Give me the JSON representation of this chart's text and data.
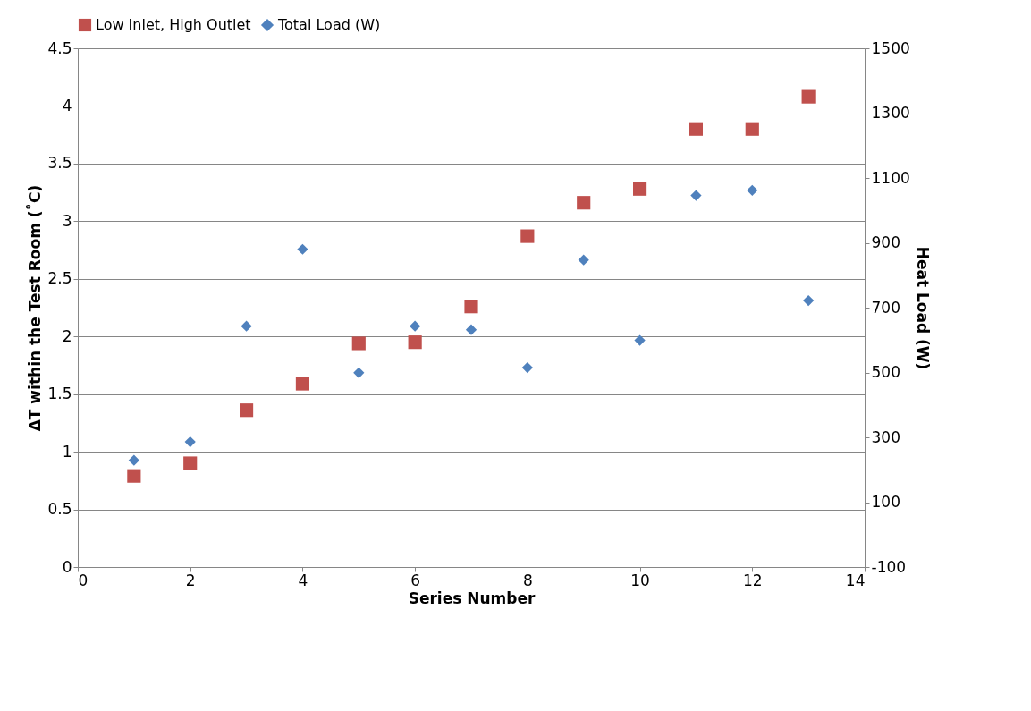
{
  "chart_data": {
    "type": "scatter",
    "xlabel": "Series Number",
    "ylabel": "ΔT within the Test Room (˚C)",
    "y2label": "Heat Load (W)",
    "x": [
      1,
      2,
      3,
      4,
      5,
      6,
      7,
      8,
      9,
      10,
      11,
      12,
      13
    ],
    "series": [
      {
        "name": "Low Inlet, High Outlet",
        "color": "#c0504d",
        "marker": "square",
        "values": [
          0.79,
          0.9,
          1.36,
          1.59,
          1.94,
          1.95,
          2.26,
          2.87,
          3.16,
          3.28,
          3.8,
          3.8,
          4.08
        ]
      },
      {
        "name": "Total Load (W)",
        "color": "#4f81bd",
        "marker": "diamond",
        "axis": "y2",
        "values": [
          229,
          286,
          643,
          880,
          499,
          643,
          632,
          515,
          847,
          599,
          1046,
          1062,
          722
        ]
      }
    ],
    "xlim": [
      0,
      14
    ],
    "xticks": [
      0,
      2,
      4,
      6,
      8,
      10,
      12,
      14
    ],
    "ylim": [
      0,
      4.5
    ],
    "yticks": [
      0,
      0.5,
      1,
      1.5,
      2,
      2.5,
      3,
      3.5,
      4,
      4.5
    ],
    "y2lim": [
      -100,
      1500
    ],
    "y2ticks": [
      -100,
      100,
      300,
      500,
      700,
      900,
      1100,
      1300,
      1500
    ],
    "grid": "y",
    "legend": "top"
  }
}
